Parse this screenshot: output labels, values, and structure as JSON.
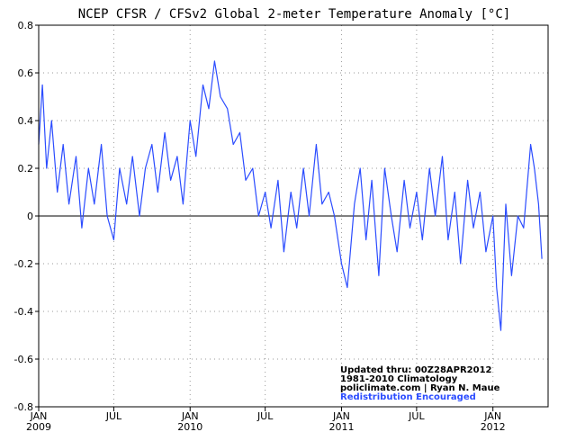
{
  "chart_data": {
    "type": "line",
    "title": "NCEP CFSR / CFSv2 Global 2-meter Temperature Anomaly [°C]",
    "xlabel": "",
    "ylabel": "",
    "ylim": [
      -0.8,
      0.8
    ],
    "yticks": [
      "0.8",
      "0.6",
      "0.4",
      "0.2",
      "0",
      "-0.2",
      "-0.4",
      "-0.6",
      "-0.8"
    ],
    "xlim": [
      "2009-01-01",
      "2012-05-13"
    ],
    "xticks": [
      {
        "month": "JAN",
        "year": "2009",
        "date": "2009-01-01"
      },
      {
        "month": "JUL",
        "year": "",
        "date": "2009-07-01"
      },
      {
        "month": "JAN",
        "year": "2010",
        "date": "2010-01-01"
      },
      {
        "month": "JUL",
        "year": "",
        "date": "2010-07-01"
      },
      {
        "month": "JAN",
        "year": "2011",
        "date": "2011-01-01"
      },
      {
        "month": "JUL",
        "year": "",
        "date": "2011-07-01"
      },
      {
        "month": "JAN",
        "year": "2012",
        "date": "2012-01-01"
      }
    ],
    "grid": true,
    "zero_line": true,
    "series": [
      {
        "color": "#2b4cff",
        "x": [
          "2009-01-01",
          "2009-01-10",
          "2009-01-20",
          "2009-02-01",
          "2009-02-15",
          "2009-03-01",
          "2009-03-15",
          "2009-04-01",
          "2009-04-15",
          "2009-05-01",
          "2009-05-15",
          "2009-06-01",
          "2009-06-15",
          "2009-07-01",
          "2009-07-15",
          "2009-08-01",
          "2009-08-15",
          "2009-09-01",
          "2009-09-15",
          "2009-10-01",
          "2009-10-15",
          "2009-11-01",
          "2009-11-15",
          "2009-12-01",
          "2009-12-15",
          "2010-01-01",
          "2010-01-15",
          "2010-02-01",
          "2010-02-15",
          "2010-03-01",
          "2010-03-15",
          "2010-04-01",
          "2010-04-15",
          "2010-05-01",
          "2010-05-15",
          "2010-06-01",
          "2010-06-15",
          "2010-07-01",
          "2010-07-15",
          "2010-08-01",
          "2010-08-15",
          "2010-09-01",
          "2010-09-15",
          "2010-10-01",
          "2010-10-15",
          "2010-11-01",
          "2010-11-15",
          "2010-12-01",
          "2010-12-15",
          "2011-01-01",
          "2011-01-15",
          "2011-02-01",
          "2011-02-15",
          "2011-03-01",
          "2011-03-15",
          "2011-04-01",
          "2011-04-15",
          "2011-05-01",
          "2011-05-15",
          "2011-06-01",
          "2011-06-15",
          "2011-07-01",
          "2011-07-15",
          "2011-08-01",
          "2011-08-15",
          "2011-09-01",
          "2011-09-15",
          "2011-10-01",
          "2011-10-15",
          "2011-11-01",
          "2011-11-15",
          "2011-12-01",
          "2011-12-15",
          "2012-01-01",
          "2012-01-10",
          "2012-01-20",
          "2012-02-01",
          "2012-02-15",
          "2012-03-01",
          "2012-03-15",
          "2012-04-01",
          "2012-04-10",
          "2012-04-20",
          "2012-04-28"
        ],
        "y": [
          0.3,
          0.55,
          0.2,
          0.4,
          0.1,
          0.3,
          0.05,
          0.25,
          -0.05,
          0.2,
          0.05,
          0.3,
          0.0,
          -0.1,
          0.2,
          0.05,
          0.25,
          0.0,
          0.2,
          0.3,
          0.1,
          0.35,
          0.15,
          0.25,
          0.05,
          0.4,
          0.25,
          0.55,
          0.45,
          0.65,
          0.5,
          0.45,
          0.3,
          0.35,
          0.15,
          0.2,
          0.0,
          0.1,
          -0.05,
          0.15,
          -0.15,
          0.1,
          -0.05,
          0.2,
          0.0,
          0.3,
          0.05,
          0.1,
          0.0,
          -0.2,
          -0.3,
          0.05,
          0.2,
          -0.1,
          0.15,
          -0.25,
          0.2,
          0.0,
          -0.15,
          0.15,
          -0.05,
          0.1,
          -0.1,
          0.2,
          0.0,
          0.25,
          -0.1,
          0.1,
          -0.2,
          0.15,
          -0.05,
          0.1,
          -0.15,
          0.0,
          -0.3,
          -0.48,
          0.05,
          -0.25,
          0.0,
          -0.05,
          0.3,
          0.2,
          0.05,
          -0.18
        ]
      }
    ],
    "annotation": {
      "lines": [
        "Updated thru:  00Z28APR2012",
        "1981-2010 Climatology",
        "policlimate.com | Ryan N. Maue"
      ],
      "highlight": "Redistribution Encouraged",
      "highlight_color": "#2b4cff"
    }
  }
}
